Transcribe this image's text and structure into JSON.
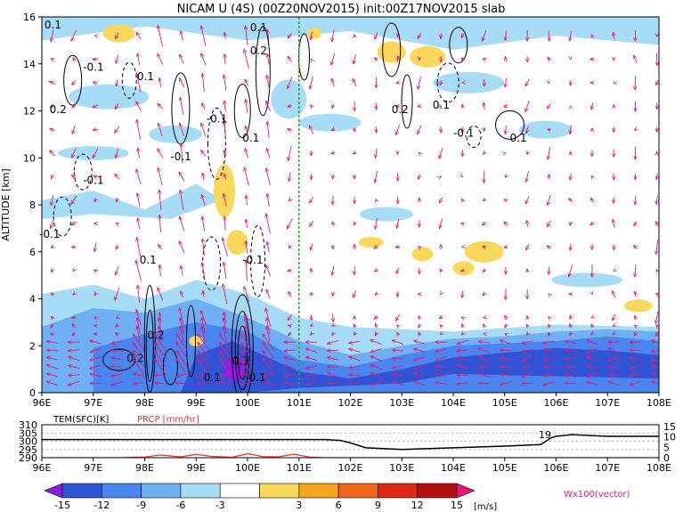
{
  "title": "NICAM U (4S) (00Z20NOV2015) init:00Z17NOV2015 slab",
  "main_panel": {
    "ylabel": "ALTITUDE [km]",
    "x_ticks": [
      "96E",
      "97E",
      "98E",
      "99E",
      "100E",
      "101E",
      "102E",
      "103E",
      "104E",
      "105E",
      "106E",
      "107E",
      "108E"
    ],
    "y_ticks": [
      "0",
      "2",
      "4",
      "6",
      "8",
      "10",
      "12",
      "14",
      "16"
    ],
    "xlim_deg": [
      96,
      108
    ],
    "ylim_km": [
      0,
      16
    ],
    "reference_line_lon": 101,
    "reference_line_color": "#22aa22",
    "contour_labels": [
      {
        "text": "0.1",
        "lon": 96.05,
        "alt": 15.5
      },
      {
        "text": "-0.1",
        "lon": 96.8,
        "alt": 13.7
      },
      {
        "text": "0.1",
        "lon": 97.85,
        "alt": 13.3
      },
      {
        "text": "0.2",
        "lon": 96.15,
        "alt": 11.9
      },
      {
        "text": "-0.1",
        "lon": 99.2,
        "alt": 11.5
      },
      {
        "text": "0.1",
        "lon": 99.9,
        "alt": 10.7
      },
      {
        "text": "-0.1",
        "lon": 98.5,
        "alt": 9.9
      },
      {
        "text": "-0.1",
        "lon": 96.8,
        "alt": 8.9
      },
      {
        "text": "-0.1",
        "lon": 95.95,
        "alt": 6.6
      },
      {
        "text": "-0.1",
        "lon": 99.9,
        "alt": 5.5
      },
      {
        "text": "0.1",
        "lon": 97.9,
        "alt": 5.5
      },
      {
        "text": "0.2",
        "lon": 98.05,
        "alt": 2.3
      },
      {
        "text": "0.2",
        "lon": 97.65,
        "alt": 1.3
      },
      {
        "text": "0.3",
        "lon": 99.7,
        "alt": 1.2
      },
      {
        "text": "0.1",
        "lon": 99.15,
        "alt": 0.5
      },
      {
        "text": "-0.1",
        "lon": 99.95,
        "alt": 0.5
      },
      {
        "text": "0.1",
        "lon": 103.6,
        "alt": 12.1
      },
      {
        "text": "0.2",
        "lon": 102.8,
        "alt": 11.9
      },
      {
        "text": "-0.1",
        "lon": 104.0,
        "alt": 10.9
      },
      {
        "text": "0.1",
        "lon": 105.1,
        "alt": 10.7
      },
      {
        "text": "0.1",
        "lon": 100.05,
        "alt": 15.4
      },
      {
        "text": "0.2",
        "lon": 100.05,
        "alt": 14.4
      }
    ]
  },
  "bottom_panel": {
    "left_label": "TEM(SFC)[K]",
    "left_label_color": "#000000",
    "right_label": "PRCP [mm/hr]",
    "right_label_color": "#ee3333",
    "left_ticks": [
      "310",
      "305",
      "300",
      "295",
      "290"
    ],
    "right_ticks": [
      "15",
      "10",
      "5",
      "0"
    ],
    "x_ticks": [
      "96E",
      "97E",
      "98E",
      "99E",
      "100E",
      "101E",
      "102E",
      "103E",
      "104E",
      "105E",
      "106E",
      "107E",
      "108E"
    ],
    "annotation": "19"
  },
  "colorbar": {
    "labels": [
      "-15",
      "-12",
      "-9",
      "-6",
      "-3",
      "3",
      "6",
      "9",
      "12",
      "15"
    ],
    "units": "[m/s]",
    "colors": [
      "#8a1ee6",
      "#2f55d6",
      "#4a86ef",
      "#6fb0f5",
      "#a6dcf5",
      "#ffffff",
      "#f8d85a",
      "#f7a51f",
      "#f0661b",
      "#dd2a12",
      "#b30e0e",
      "#e8177a"
    ],
    "vector_label": "Wx100(vector)",
    "vector_label_color": "#e8177a"
  },
  "chart_data": [
    {
      "type": "heatmap",
      "title": "NICAM U (4S) (00Z20NOV2015) init:00Z17NOV2015 slab",
      "xlabel": "",
      "ylabel": "ALTITUDE [km]",
      "xlim": [
        96,
        108
      ],
      "ylim": [
        0,
        16
      ],
      "x": [
        "96E",
        "97E",
        "98E",
        "99E",
        "100E",
        "101E",
        "102E",
        "103E",
        "104E",
        "105E",
        "106E",
        "107E",
        "108E"
      ],
      "series": [
        {
          "name": "U",
          "values": "zonal wind shading; strongest easterlies (-9 to -15 m/s) below 2 km from 99E to 108E; weak easterlies (-3 to -6) scattered aloft; westerly patches (3-6 m/s) near 99.5E 6-9 km, 103.5E 14 km, 104.5E 5-6 km, 107.5E 3 km"
        }
      ],
      "colorbar_levels": [
        -15,
        -12,
        -9,
        -6,
        -3,
        3,
        6,
        9,
        12,
        15
      ],
      "reference_line_lon": 101
    },
    {
      "type": "line",
      "x": [
        96,
        97,
        98,
        99,
        100,
        101,
        101.5,
        101.8,
        102,
        102.3,
        103,
        104,
        105,
        105.7,
        105.9,
        106,
        106.3,
        107,
        108
      ],
      "series": [
        {
          "name": "TEM(SFC)[K]",
          "values": [
            301,
            301,
            301,
            301,
            301,
            301,
            301,
            300.5,
            299,
            296,
            295,
            296,
            297,
            298,
            302,
            303,
            304,
            303,
            303
          ]
        }
      ],
      "ylim": [
        290,
        310
      ]
    },
    {
      "type": "line",
      "x": [
        96,
        97,
        97.5,
        98,
        98.3,
        98.7,
        99,
        99.3,
        99.7,
        100,
        100.3,
        100.6,
        100.9,
        101.2,
        101.5,
        102,
        104,
        106,
        108
      ],
      "series": [
        {
          "name": "PRCP [mm/hr]",
          "values": [
            0,
            0,
            0,
            0.3,
            1.2,
            0.4,
            1.5,
            0.6,
            0.2,
            1.8,
            0.5,
            0.4,
            1.6,
            0.3,
            0,
            0,
            0,
            0,
            0
          ]
        }
      ],
      "ylim": [
        0,
        15
      ]
    }
  ]
}
